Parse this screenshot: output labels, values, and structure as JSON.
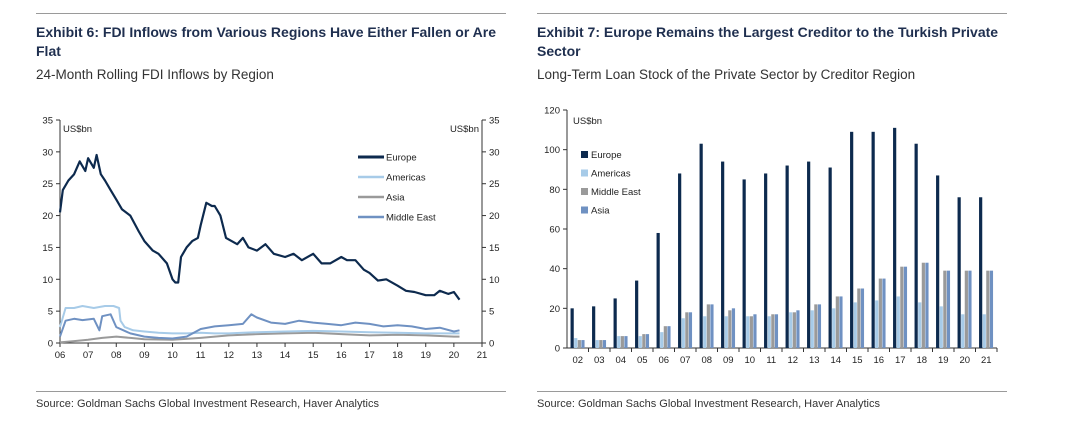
{
  "exhibit6": {
    "title": "Exhibit 6: FDI Inflows from Various Regions Have Either Fallen or Are Flat",
    "subtitle": "24-Month Rolling FDI Inflows by Region",
    "source": "Source: Goldman Sachs Global Investment Research, Haver Analytics"
  },
  "exhibit7": {
    "title": "Exhibit 7: Europe Remains the Largest Creditor to the Turkish Private Sector",
    "subtitle": "Long-Term Loan Stock of the Private Sector by Creditor Region",
    "source": "Source: Goldman Sachs Global Investment Research, Haver Analytics"
  },
  "chart_data": [
    {
      "type": "line",
      "unit_label_left": "US$bn",
      "unit_label_right": "US$bn",
      "ylim": [
        0,
        35
      ],
      "yticks": [
        0,
        5,
        10,
        15,
        20,
        25,
        30,
        35
      ],
      "xlim": [
        2006,
        2021
      ],
      "xticks": [
        "06",
        "07",
        "08",
        "09",
        "10",
        "11",
        "12",
        "13",
        "14",
        "15",
        "16",
        "17",
        "18",
        "19",
        "20",
        "21"
      ],
      "colors": {
        "Europe": "#0d2a4e",
        "Americas": "#a7cbe8",
        "Asia": "#9a9a9a",
        "Middle East": "#6f91c2"
      },
      "series": [
        {
          "name": "Europe",
          "x": [
            2006.0,
            2006.1,
            2006.3,
            2006.5,
            2006.7,
            2006.9,
            2007.0,
            2007.2,
            2007.3,
            2007.45,
            2007.6,
            2007.8,
            2008.0,
            2008.2,
            2008.5,
            2008.8,
            2009.0,
            2009.3,
            2009.5,
            2009.8,
            2010.0,
            2010.1,
            2010.2,
            2010.3,
            2010.5,
            2010.7,
            2010.9,
            2011.0,
            2011.2,
            2011.4,
            2011.5,
            2011.7,
            2011.9,
            2012.1,
            2012.3,
            2012.5,
            2012.7,
            2013.0,
            2013.3,
            2013.6,
            2014.0,
            2014.3,
            2014.6,
            2015.0,
            2015.3,
            2015.6,
            2016.0,
            2016.2,
            2016.5,
            2016.8,
            2017.0,
            2017.3,
            2017.6,
            2018.0,
            2018.3,
            2018.6,
            2019.0,
            2019.3,
            2019.5,
            2019.8,
            2020.0,
            2020.2
          ],
          "values": [
            20.5,
            24,
            25.5,
            26.5,
            28.5,
            27,
            29,
            27.5,
            29.5,
            26.5,
            25.5,
            24,
            22.5,
            21,
            20,
            17.5,
            16,
            14.5,
            14,
            12.5,
            10,
            9.5,
            9.5,
            13.5,
            15,
            16,
            16.5,
            18.5,
            22,
            21.5,
            21.5,
            20,
            16.5,
            16,
            15.5,
            16.5,
            15,
            14.5,
            15.5,
            14,
            13.5,
            14,
            13,
            14,
            12.5,
            12.5,
            13.5,
            13,
            13,
            11.5,
            11,
            9.8,
            10,
            9,
            8.2,
            8,
            7.5,
            7.5,
            8.2,
            7.7,
            8,
            6.8
          ]
        },
        {
          "name": "Americas",
          "x": [
            2006.0,
            2006.2,
            2006.5,
            2006.8,
            2007.2,
            2007.6,
            2007.9,
            2008.1,
            2008.15,
            2008.3,
            2008.6,
            2009.0,
            2009.5,
            2010.0,
            2010.5,
            2011.0,
            2011.5,
            2012.0,
            2012.5,
            2013.0,
            2014.0,
            2015.0,
            2016.0,
            2017.0,
            2018.0,
            2019.0,
            2020.0,
            2020.2
          ],
          "values": [
            2.5,
            5.5,
            5.5,
            5.8,
            5.5,
            5.8,
            5.8,
            5.5,
            3.5,
            2.5,
            2,
            1.8,
            1.6,
            1.5,
            1.5,
            1.6,
            1.5,
            1.5,
            1.6,
            1.7,
            1.8,
            1.9,
            1.8,
            1.7,
            1.6,
            1.5,
            1.5,
            1.5
          ]
        },
        {
          "name": "Asia",
          "x": [
            2006.0,
            2006.5,
            2007.0,
            2007.5,
            2008.0,
            2008.5,
            2009.0,
            2010.0,
            2011.0,
            2012.0,
            2013.0,
            2014.0,
            2015.0,
            2016.0,
            2017.0,
            2018.0,
            2019.0,
            2020.0,
            2020.2
          ],
          "values": [
            0.1,
            0.3,
            0.5,
            0.8,
            1,
            0.8,
            0.6,
            0.5,
            0.8,
            1.2,
            1.4,
            1.5,
            1.6,
            1.4,
            1.2,
            1.3,
            1.2,
            1.0,
            1.0
          ]
        },
        {
          "name": "Middle East",
          "x": [
            2006.0,
            2006.2,
            2006.5,
            2006.8,
            2007.2,
            2007.4,
            2007.5,
            2007.8,
            2008.0,
            2008.5,
            2009.0,
            2009.5,
            2010.0,
            2010.5,
            2011.0,
            2011.5,
            2012.0,
            2012.5,
            2012.8,
            2013.0,
            2013.5,
            2014.0,
            2014.5,
            2015.0,
            2015.5,
            2016.0,
            2016.5,
            2017.0,
            2017.5,
            2018.0,
            2018.5,
            2019.0,
            2019.5,
            2020.0,
            2020.2
          ],
          "values": [
            1,
            3.5,
            3.8,
            3.6,
            3.8,
            2,
            4.2,
            4.5,
            2.5,
            1.5,
            1,
            0.8,
            0.7,
            1,
            2.2,
            2.6,
            2.8,
            3,
            4.5,
            4,
            3.2,
            3.0,
            3.5,
            3.2,
            3.0,
            2.8,
            3.2,
            3,
            2.6,
            2.8,
            2.6,
            2.2,
            2.4,
            1.8,
            2.0
          ]
        }
      ]
    },
    {
      "type": "bar",
      "unit_label": "US$bn",
      "ylim": [
        0,
        120
      ],
      "yticks": [
        0,
        20,
        40,
        60,
        80,
        100,
        120
      ],
      "categories": [
        "02",
        "03",
        "04",
        "05",
        "06",
        "07",
        "08",
        "09",
        "10",
        "11",
        "12",
        "13",
        "14",
        "15",
        "16",
        "17",
        "18",
        "19",
        "20",
        "21"
      ],
      "colors": {
        "Europe": "#0d2a4e",
        "Americas": "#a7cbe8",
        "Middle East": "#9a9a9a",
        "Asia": "#6f91c2"
      },
      "series": [
        {
          "name": "Europe",
          "values": [
            20,
            21,
            25,
            34,
            58,
            88,
            103,
            94,
            85,
            88,
            92,
            94,
            91,
            109,
            109,
            111,
            103,
            87,
            76,
            76
          ]
        },
        {
          "name": "Americas",
          "values": [
            5,
            4,
            6,
            6,
            8,
            15,
            16,
            16,
            16,
            16,
            18,
            19,
            20,
            23,
            24,
            26,
            23,
            21,
            17,
            17
          ]
        },
        {
          "name": "Middle East",
          "values": [
            4,
            4,
            6,
            7,
            11,
            18,
            22,
            19,
            16,
            17,
            18,
            22,
            26,
            30,
            35,
            41,
            43,
            39,
            39,
            39
          ]
        },
        {
          "name": "Asia",
          "values": [
            4,
            4,
            6,
            7,
            11,
            18,
            22,
            20,
            17,
            17,
            19,
            22,
            26,
            30,
            35,
            41,
            43,
            39,
            39,
            39
          ]
        }
      ]
    }
  ]
}
